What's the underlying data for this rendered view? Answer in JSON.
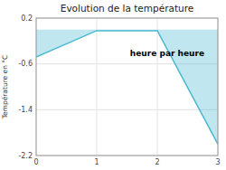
{
  "chart_data": {
    "type": "area",
    "title": "Evolution de la température",
    "y_label": "Température en °C",
    "x": [
      0,
      1,
      2,
      3
    ],
    "values": [
      -0.48,
      -0.02,
      -0.02,
      -2.0
    ],
    "color": "#4ab8d0",
    "xlim": [
      0,
      3
    ],
    "ylim": [
      -2.2,
      0.2
    ],
    "xticks": [
      0,
      1,
      2,
      3
    ],
    "yticks": [
      0.2,
      -0.6,
      -1.4,
      -2.2
    ],
    "grid": true,
    "annotations": [
      {
        "text": "heure par heure",
        "x": 1.55,
        "y": -0.42
      }
    ]
  }
}
